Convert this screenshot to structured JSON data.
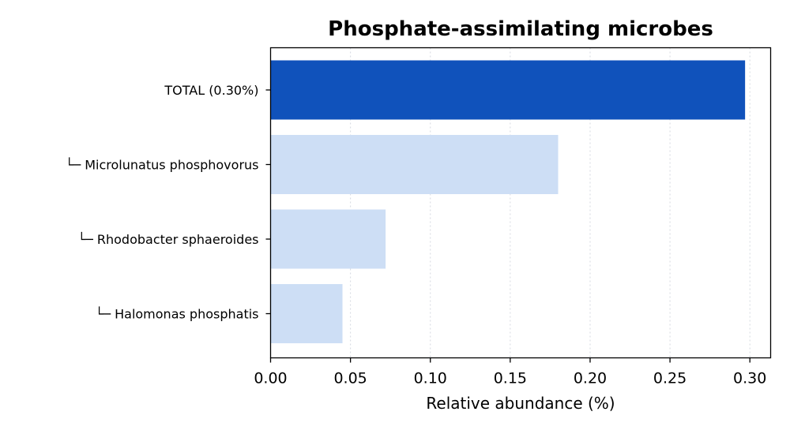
{
  "chart_data": {
    "type": "bar",
    "orientation": "horizontal",
    "title": "Phosphate-assimilating microbes",
    "xlabel": "Relative abundance (%)",
    "ylabel": "",
    "xlim": [
      0,
      0.313
    ],
    "xticks": [
      0.0,
      0.05,
      0.1,
      0.15,
      0.2,
      0.25,
      0.3
    ],
    "xtick_labels": [
      "0.00",
      "0.05",
      "0.10",
      "0.15",
      "0.20",
      "0.25",
      "0.30"
    ],
    "grid": "vertical dotted",
    "categories": [
      "TOTAL (0.30%)",
      "└─ Microlunatus phosphovorus",
      "└─ Rhodobacter sphaeroides",
      "└─ Halomonas phosphatis"
    ],
    "values": [
      0.297,
      0.18,
      0.072,
      0.045
    ],
    "colors": [
      "#1052BB",
      "#CDDEF5",
      "#CDDEF5",
      "#CDDEF5"
    ]
  }
}
